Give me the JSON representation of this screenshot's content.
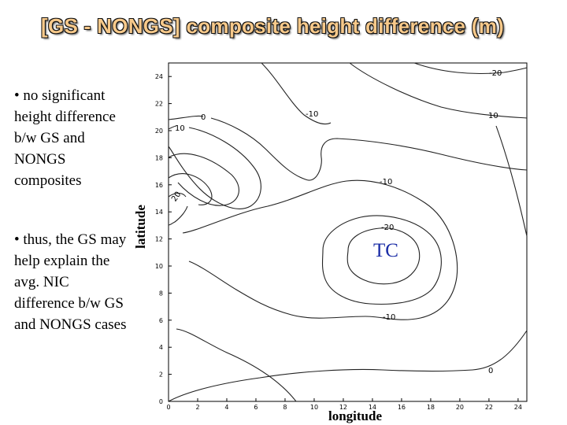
{
  "title": "[GS - NONGS] composite height difference (m)",
  "bullets": [
    "• no significant height difference b/w GS and NONGS composites",
    "• thus, the GS may help explain the avg. NIC difference b/w GS and NONGS cases"
  ],
  "axes": {
    "xlabel": "longitude",
    "ylabel": "latitude",
    "xticks": [
      "0",
      "2",
      "4",
      "6",
      "8",
      "10",
      "12",
      "14",
      "16",
      "18",
      "20",
      "22",
      "24"
    ],
    "yticks": [
      "0",
      "2",
      "4",
      "6",
      "8",
      "10",
      "12",
      "14",
      "16",
      "18",
      "20",
      "22",
      "24"
    ]
  },
  "contour_labels": [
    "-20",
    "0",
    "10",
    "-10",
    "20",
    "10",
    "-10",
    "-20",
    "-10",
    "0",
    "-20"
  ],
  "marker": "TC"
}
